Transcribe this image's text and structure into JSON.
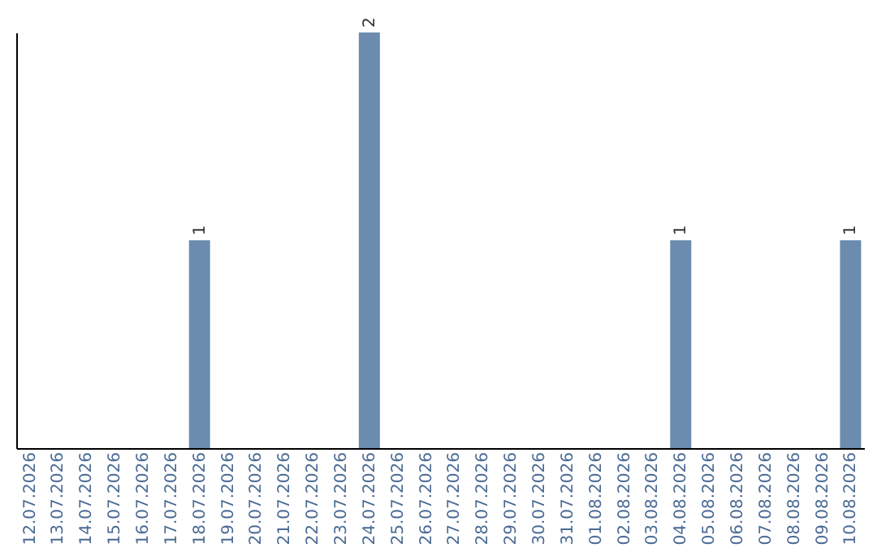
{
  "chart_data": {
    "type": "bar",
    "categories": [
      "12.07.2026",
      "13.07.2026",
      "14.07.2026",
      "15.07.2026",
      "16.07.2026",
      "17.07.2026",
      "18.07.2026",
      "19.07.2026",
      "20.07.2026",
      "21.07.2026",
      "22.07.2026",
      "23.07.2026",
      "24.07.2026",
      "25.07.2026",
      "26.07.2026",
      "27.07.2026",
      "28.07.2026",
      "29.07.2026",
      "30.07.2026",
      "31.07.2026",
      "01.08.2026",
      "02.08.2026",
      "03.08.2026",
      "04.08.2026",
      "05.08.2026",
      "06.08.2026",
      "07.08.2026",
      "08.08.2026",
      "09.08.2026",
      "10.08.2026"
    ],
    "values": [
      0,
      0,
      0,
      0,
      0,
      0,
      1,
      0,
      0,
      0,
      0,
      0,
      2,
      0,
      0,
      0,
      0,
      0,
      0,
      0,
      0,
      0,
      0,
      1,
      0,
      0,
      0,
      0,
      0,
      1
    ],
    "value_labels": [
      null,
      null,
      null,
      null,
      null,
      null,
      "1",
      null,
      null,
      null,
      null,
      null,
      "2",
      null,
      null,
      null,
      null,
      null,
      null,
      null,
      null,
      null,
      null,
      "1",
      null,
      null,
      null,
      null,
      null,
      "1"
    ],
    "color": "#6b8caf",
    "tick_labels": "x",
    "grid": false
  }
}
